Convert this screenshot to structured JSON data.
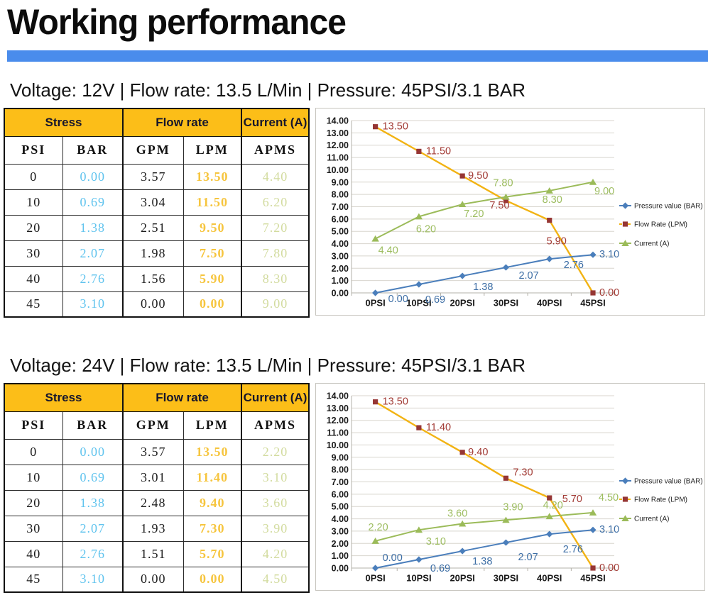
{
  "page": {
    "title": "Working performance"
  },
  "colors": {
    "divider_blue": "#4a8cec",
    "table_header_bg": "#fcbe18",
    "bar_column": "#5fc3ee",
    "lpm_column": "#f6c53e",
    "apms_column": "#d2db9e",
    "pressure_series": "#4a7ebb",
    "flow_line": "#f2b313",
    "flow_marker": "#963634",
    "flow_label": "#a23b35",
    "current_series": "#9bbb59",
    "pressure_label": "#3d6ea5"
  },
  "sections": [
    {
      "heading": "Voltage: 12V | Flow rate: 13.5 L/Min | Pressure: 45PSI/3.1 BAR",
      "table": {
        "group_headers": [
          {
            "label": "Stress",
            "span": 2
          },
          {
            "label": "Flow rate",
            "span": 2
          },
          {
            "label": "Current (A)",
            "span": 1
          }
        ],
        "columns": [
          "PSI",
          "BAR",
          "GPM",
          "LPM",
          "APMS"
        ],
        "rows": [
          [
            "0",
            "0.00",
            "3.57",
            "13.50",
            "4.40"
          ],
          [
            "10",
            "0.69",
            "3.04",
            "11.50",
            "6.20"
          ],
          [
            "20",
            "1.38",
            "2.51",
            "9.50",
            "7.20"
          ],
          [
            "30",
            "2.07",
            "1.98",
            "7.50",
            "7.80"
          ],
          [
            "40",
            "2.76",
            "1.56",
            "5.90",
            "8.30"
          ],
          [
            "45",
            "3.10",
            "0.00",
            "0.00",
            "9.00"
          ]
        ]
      },
      "chart_data": {
        "type": "line",
        "categories": [
          "0PSI",
          "10PSI",
          "20PSI",
          "30PSI",
          "40PSI",
          "45PSI"
        ],
        "ylim": [
          0,
          14
        ],
        "ytick_step": 1,
        "grid": true,
        "legend_position": "right",
        "series": [
          {
            "name": "Pressure value (BAR)",
            "values": [
              0.0,
              0.69,
              1.38,
              2.07,
              2.76,
              3.1
            ],
            "labels": [
              "0.00",
              "0.69",
              "1.38",
              "2.07",
              "2.76",
              "3.10"
            ],
            "color": "#4a7ebb",
            "marker": "diamond",
            "marker_color": "#4a7ebb",
            "label_color": "#3d6ea5",
            "label_offsets": [
              [
                18,
                13,
                "s"
              ],
              [
                9,
                26,
                "s"
              ],
              [
                15,
                20,
                "s"
              ],
              [
                18,
                16,
                "s"
              ],
              [
                20,
                13,
                "s"
              ],
              [
                9,
                4,
                "s"
              ]
            ]
          },
          {
            "name": "Flow Rate (LPM)",
            "values": [
              13.5,
              11.5,
              9.5,
              7.5,
              5.9,
              0.0
            ],
            "labels": [
              "13.50",
              "11.50",
              "9.50",
              "7.50",
              "5.90",
              "0.00"
            ],
            "color": "#f2b313",
            "marker": "square",
            "marker_color": "#963634",
            "label_color": "#a23b35",
            "label_offsets": [
              [
                10,
                4,
                "s"
              ],
              [
                10,
                4,
                "s"
              ],
              [
                8,
                4,
                "s"
              ],
              [
                -9,
                11,
                "m"
              ],
              [
                10,
                34,
                "m"
              ],
              [
                9,
                4,
                "s"
              ]
            ]
          },
          {
            "name": "Current (A)",
            "values": [
              4.4,
              6.2,
              7.2,
              7.8,
              8.3,
              9.0
            ],
            "labels": [
              "4.40",
              "6.20",
              "7.20",
              "7.80",
              "8.30",
              "9.00"
            ],
            "color": "#9bbb59",
            "marker": "triangle",
            "marker_color": "#9bbb59",
            "label_color": "#9dbd60",
            "label_offsets": [
              [
                4,
                21,
                "s"
              ],
              [
                -4,
                22,
                "s"
              ],
              [
                2,
                18,
                "s"
              ],
              [
                -4,
                -15,
                "m"
              ],
              [
                4,
                17,
                "m"
              ],
              [
                2,
                17,
                "s"
              ]
            ]
          }
        ]
      }
    },
    {
      "heading": "Voltage: 24V | Flow rate: 13.5 L/Min | Pressure: 45PSI/3.1 BAR",
      "table": {
        "group_headers": [
          {
            "label": "Stress",
            "span": 2
          },
          {
            "label": "Flow rate",
            "span": 2
          },
          {
            "label": "Current (A)",
            "span": 1
          }
        ],
        "columns": [
          "PSI",
          "BAR",
          "GPM",
          "LPM",
          "APMS"
        ],
        "rows": [
          [
            "0",
            "0.00",
            "3.57",
            "13.50",
            "2.20"
          ],
          [
            "10",
            "0.69",
            "3.01",
            "11.40",
            "3.10"
          ],
          [
            "20",
            "1.38",
            "2.48",
            "9.40",
            "3.60"
          ],
          [
            "30",
            "2.07",
            "1.93",
            "7.30",
            "3.90"
          ],
          [
            "40",
            "2.76",
            "1.51",
            "5.70",
            "4.20"
          ],
          [
            "45",
            "3.10",
            "0.00",
            "0.00",
            "4.50"
          ]
        ]
      },
      "chart_data": {
        "type": "line",
        "categories": [
          "0PSI",
          "10PSI",
          "20PSI",
          "30PSI",
          "40PSI",
          "45PSI"
        ],
        "ylim": [
          0,
          14
        ],
        "ytick_step": 1,
        "grid": true,
        "legend_position": "right",
        "series": [
          {
            "name": "Pressure value (BAR)",
            "values": [
              0.0,
              0.69,
              1.38,
              2.07,
              2.76,
              3.1
            ],
            "labels": [
              "0.00",
              "0.69",
              "1.38",
              "2.07",
              "2.76",
              "3.10"
            ],
            "color": "#4a7ebb",
            "marker": "diamond",
            "marker_color": "#4a7ebb",
            "label_color": "#3d6ea5",
            "label_offsets": [
              [
                10,
                -10,
                "s"
              ],
              [
                16,
                17,
                "s"
              ],
              [
                14,
                19,
                "s"
              ],
              [
                17,
                25,
                "s"
              ],
              [
                19,
                26,
                "s"
              ],
              [
                9,
                4,
                "s"
              ]
            ]
          },
          {
            "name": "Flow Rate (LPM)",
            "values": [
              13.5,
              11.4,
              9.4,
              7.3,
              5.7,
              0.0
            ],
            "labels": [
              "13.50",
              "11.40",
              "9.40",
              "7.30",
              "5.70",
              "0.00"
            ],
            "color": "#f2b313",
            "marker": "square",
            "marker_color": "#963634",
            "label_color": "#a23b35",
            "label_offsets": [
              [
                10,
                4,
                "s"
              ],
              [
                10,
                4,
                "s"
              ],
              [
                8,
                4,
                "s"
              ],
              [
                24,
                -4,
                "m"
              ],
              [
                18,
                6,
                "s"
              ],
              [
                9,
                4,
                "s"
              ]
            ]
          },
          {
            "name": "Current (A)",
            "values": [
              2.2,
              3.1,
              3.6,
              3.9,
              4.2,
              4.5
            ],
            "labels": [
              "2.20",
              "3.10",
              "3.60",
              "3.90",
              "4.20",
              "4.50"
            ],
            "color": "#9bbb59",
            "marker": "triangle",
            "marker_color": "#9bbb59",
            "label_color": "#9dbd60",
            "label_offsets": [
              [
                4,
                -15,
                "m"
              ],
              [
                24,
                21,
                "m"
              ],
              [
                -7,
                -10,
                "m"
              ],
              [
                10,
                -14,
                "m"
              ],
              [
                5,
                -11,
                "m"
              ],
              [
                22,
                -17,
                "m"
              ]
            ]
          }
        ]
      }
    }
  ]
}
